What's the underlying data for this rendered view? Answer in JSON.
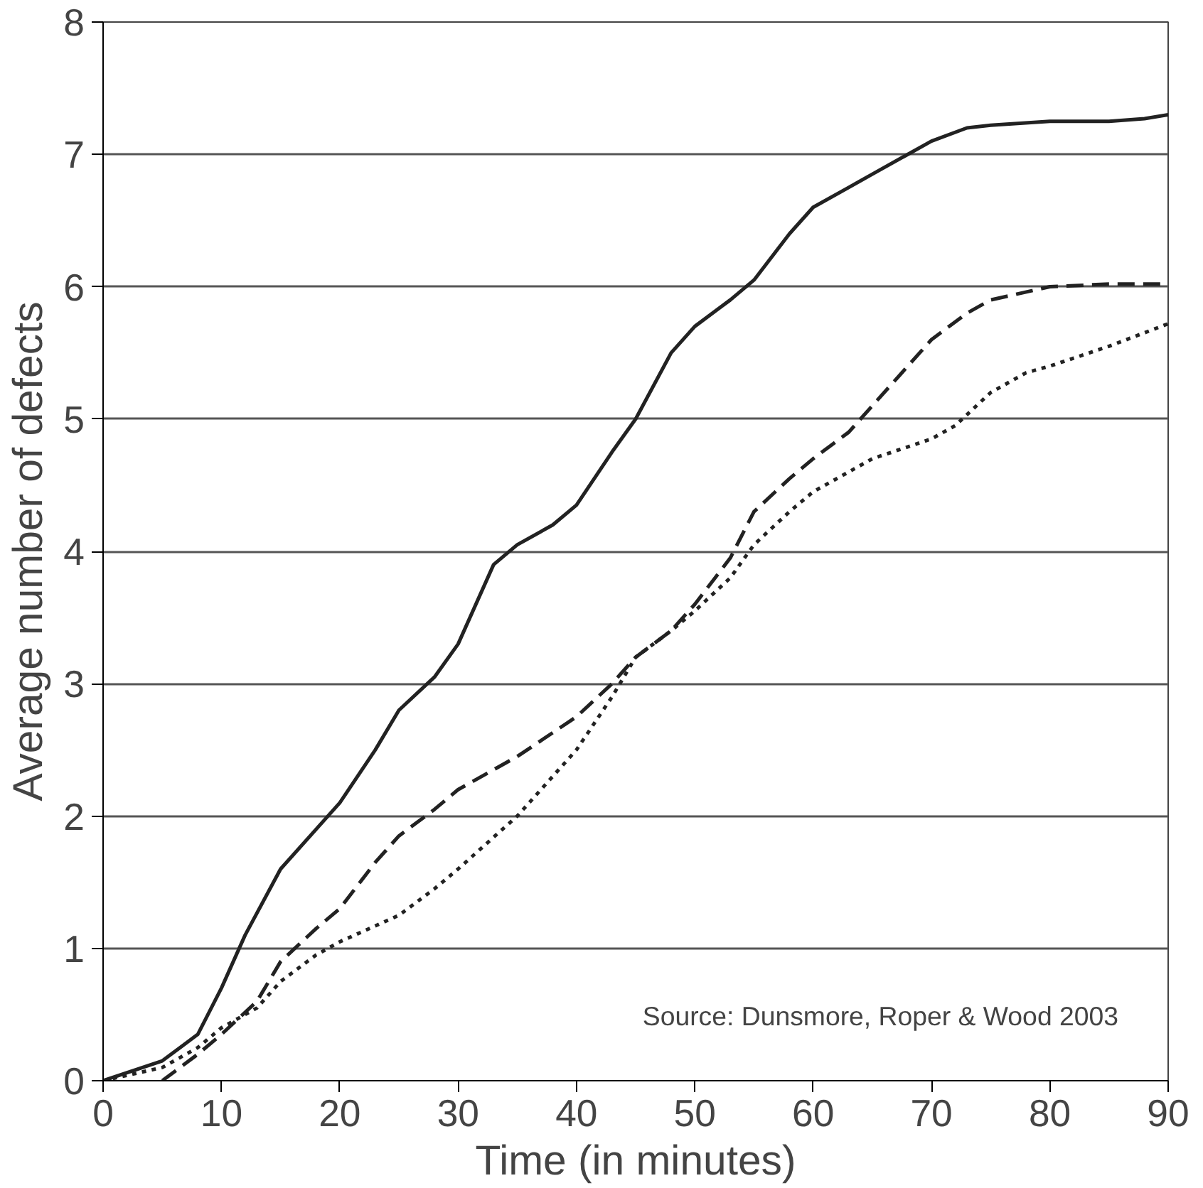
{
  "chart_data": {
    "type": "line",
    "xlabel": "Time (in minutes)",
    "ylabel": "Average number of defects",
    "xlim": [
      0,
      90
    ],
    "xticks": [
      0,
      10,
      20,
      30,
      40,
      50,
      60,
      70,
      80,
      90
    ],
    "ylim": [
      0,
      8
    ],
    "yticks": [
      0,
      1,
      2,
      3,
      4,
      5,
      6,
      7,
      8
    ],
    "grid": "y",
    "annotations": [
      "Source: Dunsmore, Roper & Wood 2003"
    ],
    "series": [
      {
        "color": "#222222",
        "line_style": "solid",
        "x": [
          0,
          5,
          8,
          10,
          12,
          15,
          18,
          20,
          23,
          25,
          28,
          30,
          33,
          35,
          38,
          40,
          43,
          45,
          48,
          50,
          53,
          55,
          58,
          60,
          63,
          65,
          68,
          70,
          73,
          75,
          80,
          85,
          88,
          90
        ],
        "values": [
          0,
          0.15,
          0.35,
          0.7,
          1.1,
          1.6,
          1.9,
          2.1,
          2.5,
          2.8,
          3.05,
          3.3,
          3.9,
          4.05,
          4.2,
          4.35,
          4.75,
          5.0,
          5.5,
          5.7,
          5.9,
          6.05,
          6.4,
          6.6,
          6.75,
          6.85,
          7.0,
          7.1,
          7.2,
          7.22,
          7.25,
          7.25,
          7.27,
          7.3
        ]
      },
      {
        "color": "#222222",
        "line_style": "dashed",
        "x": [
          5,
          8,
          10,
          13,
          15,
          18,
          20,
          23,
          25,
          28,
          30,
          35,
          40,
          43,
          45,
          48,
          50,
          53,
          55,
          58,
          60,
          63,
          65,
          68,
          70,
          73,
          75,
          80,
          85,
          90
        ],
        "values": [
          0,
          0.2,
          0.35,
          0.6,
          0.9,
          1.15,
          1.3,
          1.65,
          1.85,
          2.05,
          2.2,
          2.45,
          2.75,
          3.0,
          3.2,
          3.4,
          3.6,
          3.95,
          4.3,
          4.55,
          4.7,
          4.9,
          5.1,
          5.4,
          5.6,
          5.8,
          5.9,
          6.0,
          6.02,
          6.02
        ]
      },
      {
        "color": "#222222",
        "line_style": "dotted",
        "x": [
          0,
          5,
          8,
          10,
          13,
          15,
          18,
          20,
          25,
          28,
          30,
          35,
          38,
          40,
          43,
          45,
          48,
          50,
          53,
          55,
          58,
          60,
          63,
          65,
          70,
          72,
          75,
          78,
          80,
          85,
          90
        ],
        "values": [
          0,
          0.1,
          0.25,
          0.4,
          0.55,
          0.75,
          0.95,
          1.05,
          1.25,
          1.45,
          1.6,
          2.0,
          2.3,
          2.5,
          2.9,
          3.2,
          3.4,
          3.55,
          3.8,
          4.05,
          4.3,
          4.45,
          4.6,
          4.7,
          4.85,
          4.95,
          5.2,
          5.35,
          5.4,
          5.55,
          5.72
        ]
      }
    ]
  }
}
